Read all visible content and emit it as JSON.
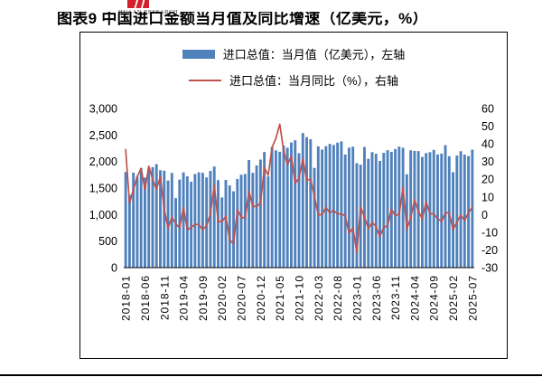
{
  "header": {
    "logo_text": "HUAAN RESEARCH",
    "title": "图表9 中国进口金额当月值及同比增速（亿美元，%）"
  },
  "chart_data": {
    "type": "bar",
    "title": "中国进口金额当月值及同比增速（亿美元，%）",
    "xlabel": "",
    "ylabel_left": "进口总值：当月值（亿美元）",
    "ylabel_right": "进口总值：当月同比（%）",
    "legend_position": "top-center",
    "grid": false,
    "legend": [
      {
        "label": "进口总值：当月值（亿美元），左轴",
        "color": "#4F81BD",
        "marker": "bar"
      },
      {
        "label": "进口总值：当月同比（%），右轴",
        "color": "#C0504D",
        "marker": "line"
      }
    ],
    "left_axis": {
      "min": 0,
      "max": 3000,
      "tick_values": [
        0,
        500,
        1000,
        1500,
        2000,
        2500,
        3000
      ],
      "tick_labels": [
        "0",
        "500",
        "1,000",
        "1,500",
        "2,000",
        "2,500",
        "3,000"
      ]
    },
    "right_axis": {
      "min": -30,
      "max": 60,
      "tick_values": [
        -30,
        -20,
        -10,
        0,
        10,
        20,
        30,
        40,
        50,
        60
      ],
      "tick_labels": [
        "-30",
        "-20",
        "-10",
        "0",
        "10",
        "20",
        "30",
        "40",
        "50",
        "60"
      ]
    },
    "x_tick_every": 5,
    "x": [
      "2018-01",
      "2018-02",
      "2018-03",
      "2018-04",
      "2018-05",
      "2018-06",
      "2018-07",
      "2018-08",
      "2018-09",
      "2018-10",
      "2018-11",
      "2018-12",
      "2019-01",
      "2019-02",
      "2019-03",
      "2019-04",
      "2019-05",
      "2019-06",
      "2019-07",
      "2019-08",
      "2019-09",
      "2019-10",
      "2019-11",
      "2019-12",
      "2020-01",
      "2020-02",
      "2020-03",
      "2020-04",
      "2020-05",
      "2020-06",
      "2020-07",
      "2020-08",
      "2020-09",
      "2020-10",
      "2020-11",
      "2020-12",
      "2021-01",
      "2021-02",
      "2021-03",
      "2021-04",
      "2021-05",
      "2021-06",
      "2021-07",
      "2021-08",
      "2021-09",
      "2021-10",
      "2021-11",
      "2021-12",
      "2022-01",
      "2022-02",
      "2022-03",
      "2022-04",
      "2022-05",
      "2022-06",
      "2022-07",
      "2022-08",
      "2022-09",
      "2022-10",
      "2022-11",
      "2022-12",
      "2023-01",
      "2023-02",
      "2023-03",
      "2023-04",
      "2023-05",
      "2023-06",
      "2023-07",
      "2023-08",
      "2023-09",
      "2023-10",
      "2023-11",
      "2023-12",
      "2024-01",
      "2024-02",
      "2024-03",
      "2024-04",
      "2024-05",
      "2024-06",
      "2024-07",
      "2024-08",
      "2024-09",
      "2024-10",
      "2024-11",
      "2024-12",
      "2025-01",
      "2025-02",
      "2025-03",
      "2025-04",
      "2025-05",
      "2025-06",
      "2025-07"
    ],
    "series": [
      {
        "name": "进口总值：当月值（亿美元）",
        "type": "bar",
        "axis": "left",
        "values": [
          1804,
          1371,
          1791,
          1716,
          1879,
          1698,
          1875,
          1895,
          1952,
          1836,
          1827,
          1642,
          1785,
          1311,
          1660,
          1795,
          1721,
          1619,
          1765,
          1796,
          1787,
          1700,
          1823,
          1905,
          1650,
          1322,
          1653,
          1549,
          1439,
          1672,
          1751,
          1765,
          2028,
          1787,
          1926,
          2037,
          2180,
          1720,
          2273,
          2211,
          2184,
          2301,
          2261,
          2360,
          2400,
          2157,
          2538,
          2460,
          2420,
          1880,
          2287,
          2225,
          2290,
          2333,
          2312,
          2355,
          2380,
          2132,
          2262,
          2281,
          1970,
          1940,
          2274,
          2052,
          2177,
          2147,
          2012,
          2164,
          2214,
          2183,
          2236,
          2282,
          2260,
          1760,
          2211,
          2201,
          2197,
          2088,
          2159,
          2176,
          2220,
          2133,
          2149,
          2308,
          2100,
          1800,
          2113,
          2195,
          2129,
          2104,
          2223
        ]
      },
      {
        "name": "进口总值：当月同比（%）",
        "type": "line",
        "axis": "right",
        "values": [
          36.8,
          6.3,
          14.4,
          21.5,
          26.0,
          14.1,
          27.3,
          19.9,
          14.3,
          21.4,
          3.0,
          -7.6,
          -1.5,
          -5.2,
          -7.6,
          4.0,
          -8.5,
          -7.3,
          -5.6,
          -5.6,
          -8.5,
          -6.4,
          0.3,
          16.3,
          -4.0,
          -4.0,
          -0.9,
          -14.2,
          -16.7,
          2.7,
          -1.4,
          -2.1,
          13.2,
          4.7,
          4.5,
          6.5,
          26.6,
          22.2,
          38.1,
          43.1,
          51.1,
          36.7,
          28.1,
          33.1,
          17.6,
          20.6,
          31.7,
          19.5,
          19.9,
          10.4,
          -0.1,
          0.0,
          4.1,
          1.0,
          2.3,
          0.3,
          0.3,
          -0.7,
          -10.6,
          -7.5,
          -21.4,
          4.2,
          -1.4,
          -7.9,
          -4.5,
          -6.8,
          -12.4,
          -7.3,
          -6.2,
          3.0,
          -0.6,
          0.2,
          15.4,
          -8.2,
          -1.9,
          8.4,
          1.8,
          -2.3,
          7.2,
          0.5,
          0.3,
          -2.3,
          -3.9,
          1.0,
          1.0,
          -8.4,
          -4.3,
          -0.2,
          -3.4,
          1.1,
          4.1
        ]
      }
    ]
  }
}
